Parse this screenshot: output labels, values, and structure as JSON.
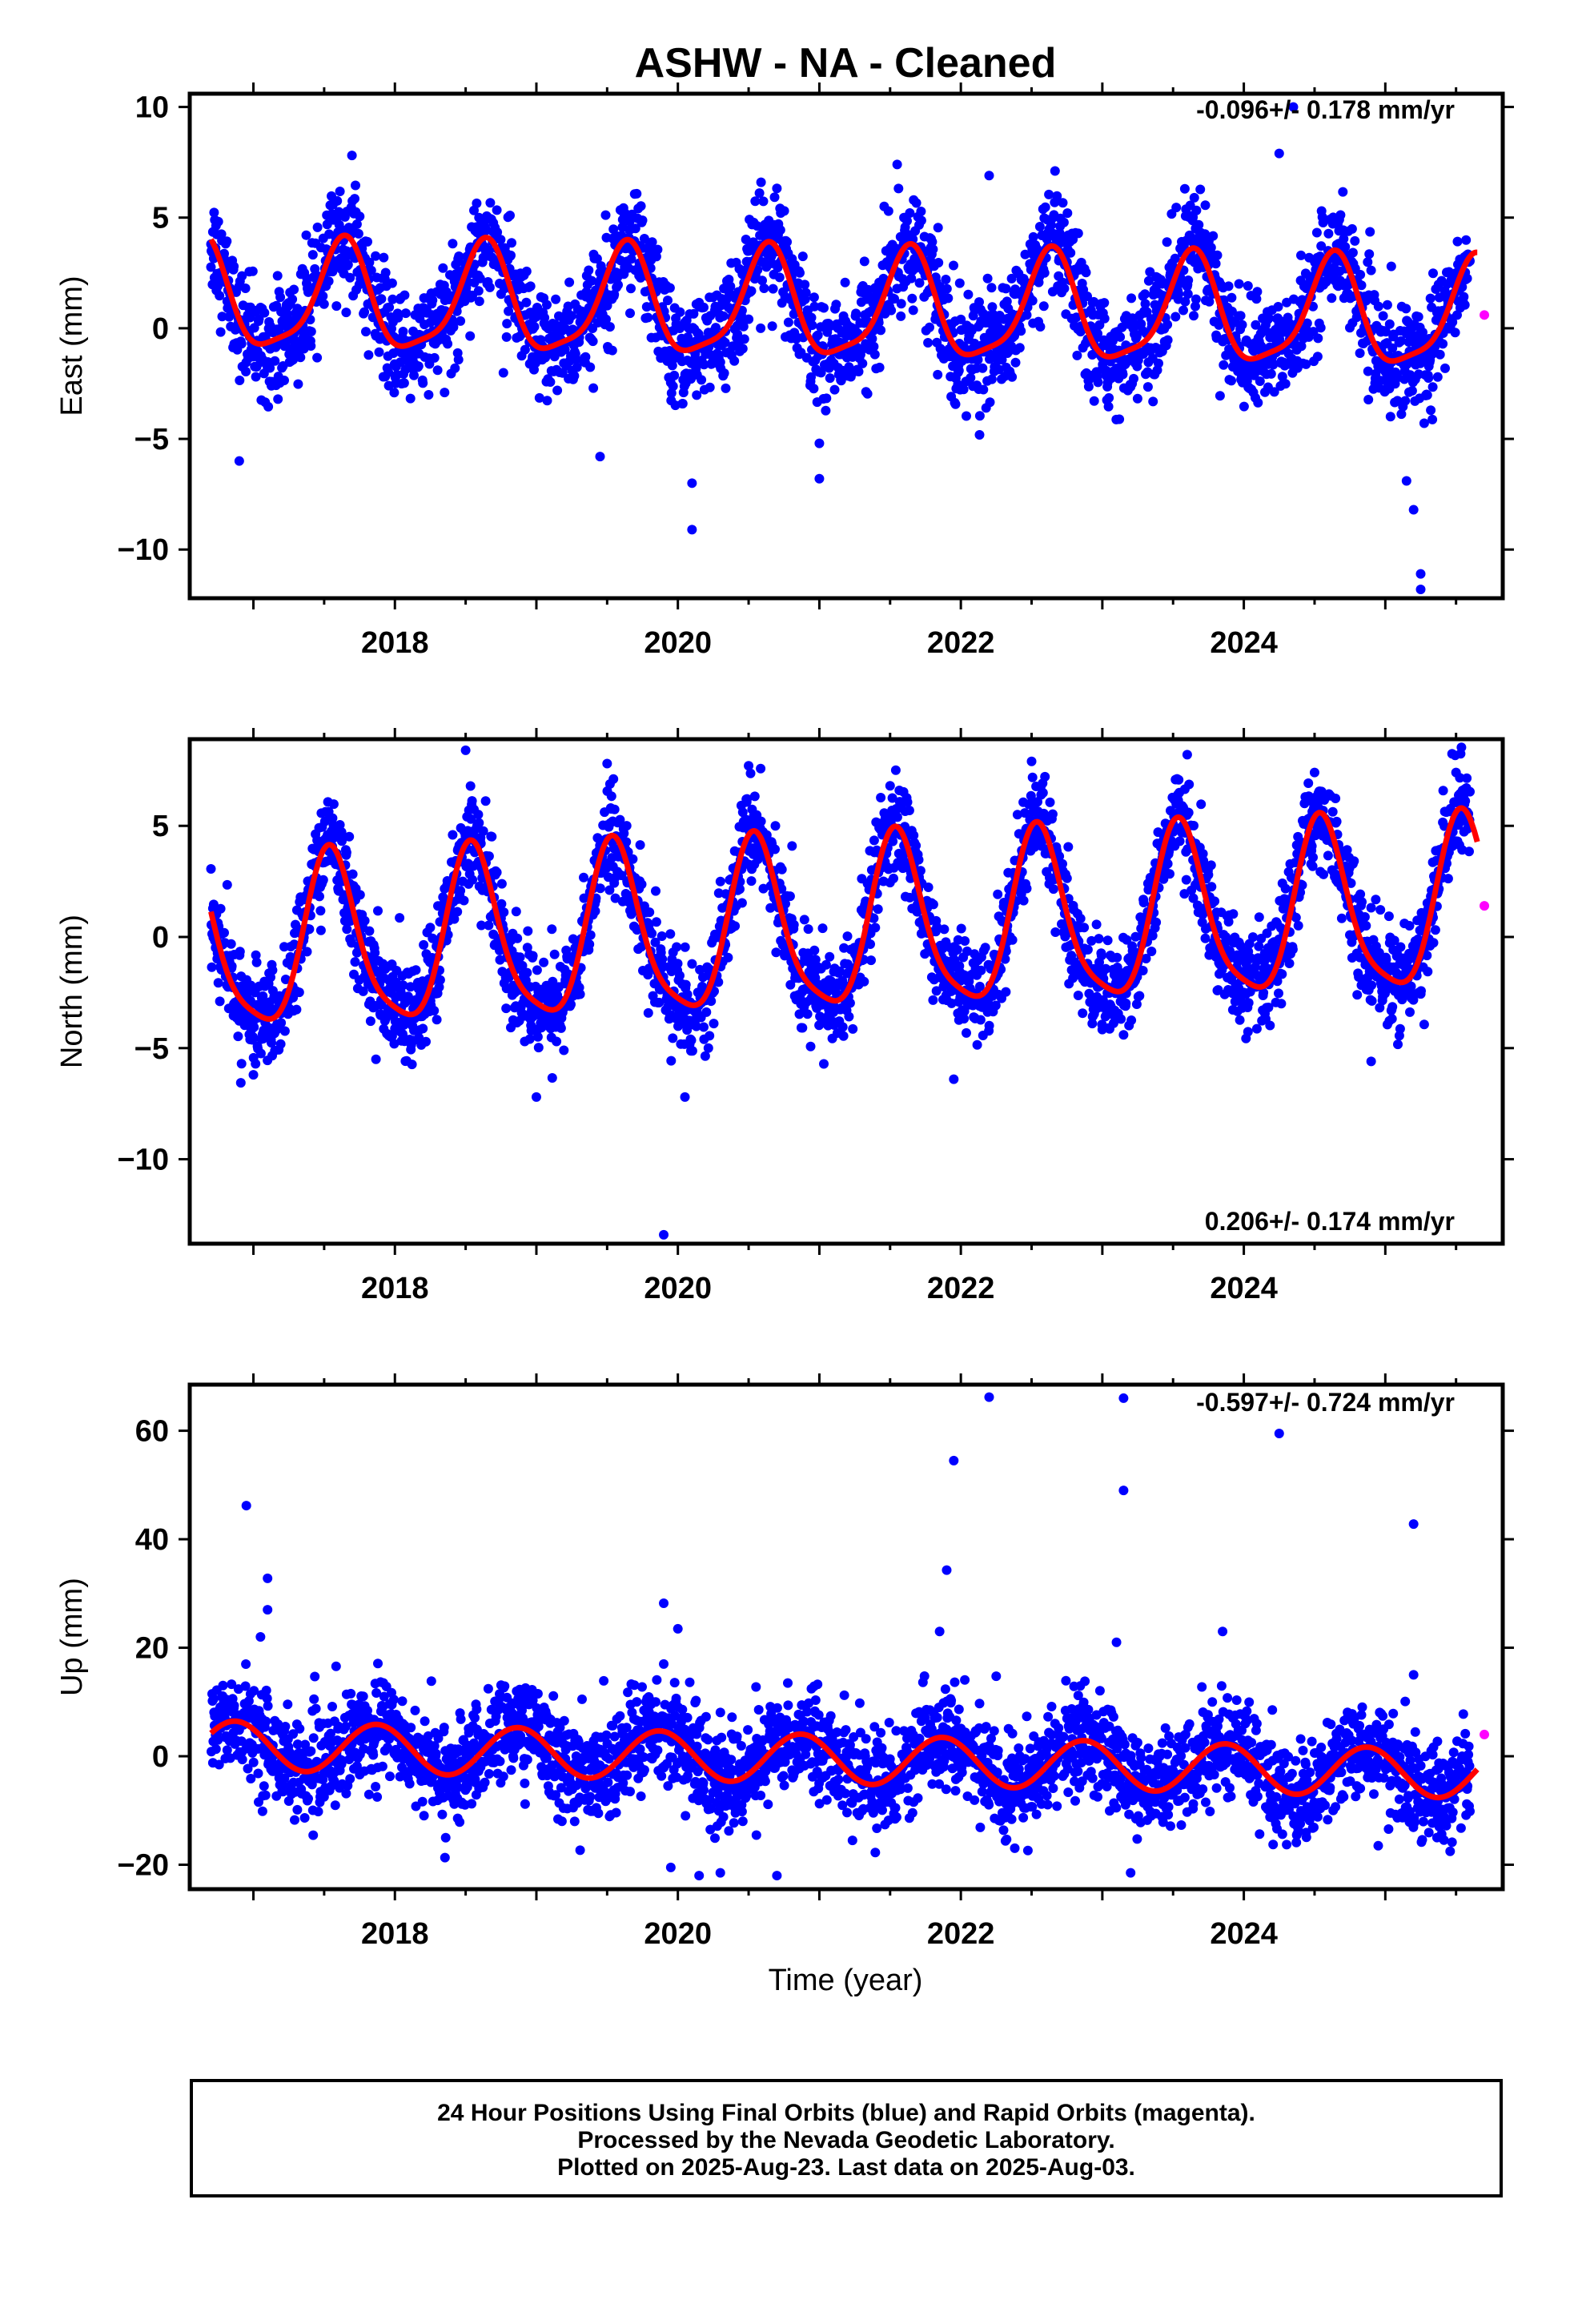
{
  "title": "ASHW  - NA - Cleaned",
  "xlabel": "Time (year)",
  "footer": {
    "line1": "24 Hour Positions Using Final Orbits (blue) and Rapid Orbits (magenta).",
    "line2": "Processed by the Nevada Geodetic Laboratory.",
    "line3": "Plotted on 2025-Aug-23. Last data on 2025-Aug-03."
  },
  "colors": {
    "final": "#0000ff",
    "rapid": "#ff00ff",
    "model": "#ff0000",
    "frame": "#000000"
  },
  "chart_data": [
    {
      "type": "scatter",
      "component": "east",
      "ylabel": "East (mm)",
      "rate_label": "-0.096+/- 0.178 mm/yr",
      "xlim": [
        2016.55,
        2025.83
      ],
      "ylim": [
        -12.2,
        10.6
      ],
      "xticks": [
        2018,
        2020,
        2022,
        2024
      ],
      "yticks": [
        -10,
        -5,
        0,
        5,
        10
      ],
      "data_start": 2016.7,
      "data_end": 2025.6,
      "model": {
        "offset": 0.9,
        "rate": -0.096,
        "ref_year": 2021,
        "annual_amp": 2.4,
        "annual_peak": 0.63,
        "semiannual_amp": 0.6,
        "semiannual_peak": 0.66
      },
      "scatter_sd": 1.2,
      "outliers": [
        {
          "x": 2016.7,
          "y": 3.8
        },
        {
          "x": 2016.9,
          "y": -6.0
        },
        {
          "x": 2019.45,
          "y": -5.8
        },
        {
          "x": 2020.1,
          "y": -7.0
        },
        {
          "x": 2020.1,
          "y": -9.1
        },
        {
          "x": 2021.0,
          "y": -6.8
        },
        {
          "x": 2021.0,
          "y": -5.2
        },
        {
          "x": 2021.55,
          "y": 7.4
        },
        {
          "x": 2022.2,
          "y": 6.9
        },
        {
          "x": 2023.65,
          "y": 5.9
        },
        {
          "x": 2024.25,
          "y": 7.9
        },
        {
          "x": 2024.35,
          "y": 10.0
        },
        {
          "x": 2025.15,
          "y": -6.9
        },
        {
          "x": 2025.2,
          "y": -8.2
        },
        {
          "x": 2025.25,
          "y": -11.1
        },
        {
          "x": 2025.25,
          "y": -11.8
        },
        {
          "x": 2025.5,
          "y": 2.5
        }
      ],
      "rapid_points": [
        {
          "x": 2025.7,
          "y": 0.6
        }
      ]
    },
    {
      "type": "scatter",
      "component": "north",
      "ylabel": "North (mm)",
      "rate_label": "0.206+/- 0.174 mm/yr",
      "xlim": [
        2016.55,
        2025.83
      ],
      "ylim": [
        -13.8,
        8.9
      ],
      "xticks": [
        2018,
        2020,
        2022,
        2024
      ],
      "yticks": [
        -10,
        -5,
        0,
        5
      ],
      "data_start": 2016.7,
      "data_end": 2025.6,
      "model": {
        "offset": 0.3,
        "rate": 0.206,
        "ref_year": 2021,
        "annual_amp": 3.8,
        "annual_peak": 0.55,
        "semiannual_amp": 0.8,
        "semiannual_peak": 0.52
      },
      "scatter_sd": 1.1,
      "outliers": [
        {
          "x": 2018.5,
          "y": 8.4
        },
        {
          "x": 2019.5,
          "y": 7.8
        },
        {
          "x": 2020.5,
          "y": 7.7
        },
        {
          "x": 2019.0,
          "y": -7.2
        },
        {
          "x": 2019.9,
          "y": -13.4
        },
        {
          "x": 2020.05,
          "y": -7.2
        },
        {
          "x": 2021.5,
          "y": 6.8
        },
        {
          "x": 2022.5,
          "y": 7.9
        },
        {
          "x": 2023.6,
          "y": 8.2
        },
        {
          "x": 2024.5,
          "y": 7.4
        },
        {
          "x": 2025.5,
          "y": 7.4
        },
        {
          "x": 2024.9,
          "y": -5.6
        },
        {
          "x": 2021.95,
          "y": -6.4
        },
        {
          "x": 2017.0,
          "y": -6.2
        }
      ],
      "rapid_points": [
        {
          "x": 2025.7,
          "y": 1.4
        }
      ]
    },
    {
      "type": "scatter",
      "component": "up",
      "ylabel": "Up (mm)",
      "rate_label": "-0.597+/- 0.724 mm/yr",
      "xlim": [
        2016.55,
        2025.83
      ],
      "ylim": [
        -24.5,
        68.5
      ],
      "xticks": [
        2018,
        2020,
        2022,
        2024
      ],
      "yticks": [
        -20,
        0,
        20,
        40,
        60
      ],
      "data_start": 2016.7,
      "data_end": 2025.6,
      "model": {
        "offset": -0.5,
        "rate": -0.597,
        "ref_year": 2021,
        "annual_amp": 4.5,
        "annual_peak": 0.87,
        "semiannual_amp": 0.0,
        "semiannual_peak": 0.0
      },
      "scatter_sd": 4.5,
      "outliers": [
        {
          "x": 2016.95,
          "y": 46.2
        },
        {
          "x": 2017.1,
          "y": 32.8
        },
        {
          "x": 2017.05,
          "y": 22.0
        },
        {
          "x": 2017.1,
          "y": 27.0
        },
        {
          "x": 2019.9,
          "y": 28.2
        },
        {
          "x": 2019.9,
          "y": 17.0
        },
        {
          "x": 2020.0,
          "y": 23.5
        },
        {
          "x": 2019.95,
          "y": -20.5
        },
        {
          "x": 2020.15,
          "y": -22.0
        },
        {
          "x": 2020.3,
          "y": -21.5
        },
        {
          "x": 2020.7,
          "y": -22.0
        },
        {
          "x": 2021.95,
          "y": 54.5
        },
        {
          "x": 2021.9,
          "y": 34.3
        },
        {
          "x": 2021.85,
          "y": 23.0
        },
        {
          "x": 2022.2,
          "y": 66.2
        },
        {
          "x": 2023.15,
          "y": 66.0
        },
        {
          "x": 2023.15,
          "y": 49.0
        },
        {
          "x": 2023.1,
          "y": 21.0
        },
        {
          "x": 2023.2,
          "y": -21.5
        },
        {
          "x": 2024.25,
          "y": 59.5
        },
        {
          "x": 2025.2,
          "y": 42.8
        },
        {
          "x": 2025.2,
          "y": 15.0
        },
        {
          "x": 2023.85,
          "y": 23.0
        },
        {
          "x": 2024.95,
          "y": -16.5
        }
      ],
      "rapid_points": [
        {
          "x": 2025.7,
          "y": 4.0
        }
      ]
    }
  ]
}
